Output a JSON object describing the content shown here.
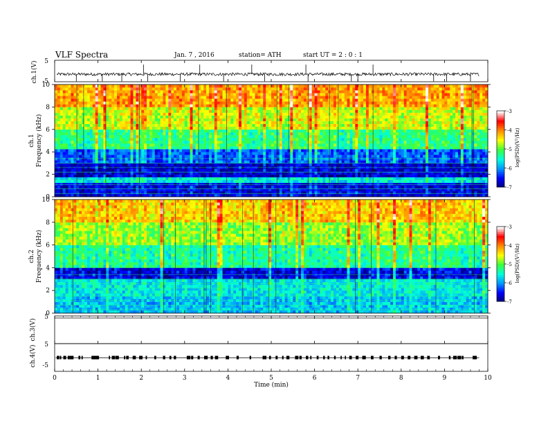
{
  "header": {
    "title": "VLF  Spectra",
    "date": "Jan.  7  , 2016",
    "station": "station= ATH",
    "start": "start  UT  =   2  : 0   : 1"
  },
  "chart_data": [
    {
      "type": "line",
      "panel": "ch1-waveform",
      "ylabel": "ch.1(V)",
      "ylim": [
        -5,
        5
      ],
      "yticks": [
        "5",
        "-5"
      ],
      "xlim": [
        0,
        10
      ],
      "baseline": -1.5,
      "spike_minutes": [
        0.5,
        1.1,
        1.55,
        2.05,
        2.15,
        2.9,
        3.35,
        3.9,
        4.55,
        4.85,
        5.8,
        5.85,
        6.85,
        7.0,
        7.35,
        8.75,
        9.05,
        9.6
      ]
    },
    {
      "type": "heatmap",
      "panel": "ch1-spectrogram",
      "ylabel": "ch.1\nFrequency (kHz)",
      "ylabel_line1": "ch.1",
      "ylabel_line2": "Frequency  (kHz)",
      "ylim": [
        0,
        10
      ],
      "yticks": [
        "0",
        "2",
        "4",
        "6",
        "8",
        "10"
      ],
      "xlim": [
        0,
        9.8
      ],
      "colorbar": {
        "label": "log(PSD)(V²/Hz)",
        "range": [
          -7,
          -3
        ],
        "ticks": [
          "-3",
          "-4",
          "-5",
          "-6",
          "-7"
        ]
      },
      "bands": [
        {
          "from_khz": 0.0,
          "to_khz": 1.2,
          "log_psd": -6.6
        },
        {
          "from_khz": 1.2,
          "to_khz": 1.8,
          "log_psd": -5.6
        },
        {
          "from_khz": 1.8,
          "to_khz": 3.0,
          "log_psd": -6.7
        },
        {
          "from_khz": 3.0,
          "to_khz": 4.2,
          "log_psd": -6.2
        },
        {
          "from_khz": 4.2,
          "to_khz": 6.0,
          "log_psd": -5.2
        },
        {
          "from_khz": 6.0,
          "to_khz": 8.0,
          "log_psd": -4.6
        },
        {
          "from_khz": 8.0,
          "to_khz": 10.0,
          "log_psd": -4.1
        }
      ]
    },
    {
      "type": "heatmap",
      "panel": "ch2-spectrogram",
      "ylabel_line1": "ch.2",
      "ylabel_line2": "Frequency  (kHz)",
      "ylim": [
        0,
        10
      ],
      "yticks": [
        "0",
        "2",
        "4",
        "6",
        "8",
        "10"
      ],
      "xlim": [
        0,
        9.8
      ],
      "colorbar": {
        "label": "log(PSD)(V²/Hz)",
        "range": [
          -7,
          -3
        ],
        "ticks": [
          "-3",
          "-4",
          "-5",
          "-6",
          "-7"
        ]
      },
      "bands": [
        {
          "from_khz": 0.0,
          "to_khz": 1.5,
          "log_psd": -5.8
        },
        {
          "from_khz": 1.5,
          "to_khz": 3.0,
          "log_psd": -5.6
        },
        {
          "from_khz": 3.0,
          "to_khz": 4.0,
          "log_psd": -6.6
        },
        {
          "from_khz": 4.0,
          "to_khz": 6.0,
          "log_psd": -5.3
        },
        {
          "from_khz": 6.0,
          "to_khz": 8.0,
          "log_psd": -4.8
        },
        {
          "from_khz": 8.0,
          "to_khz": 10.0,
          "log_psd": -4.3
        }
      ]
    },
    {
      "type": "line",
      "panel": "ch3-waveform",
      "ylabel": "ch.3(V)",
      "ylim": [
        -5,
        5
      ],
      "yticks": [
        "5",
        "-5"
      ],
      "xlim": [
        0,
        10
      ]
    },
    {
      "type": "line",
      "panel": "ch4-waveform",
      "ylabel": "ch.4(V)",
      "ylim": [
        -5,
        5
      ],
      "yticks": [
        "5",
        "-5"
      ],
      "xlim": [
        0,
        10
      ],
      "baseline": 0.1,
      "pulse_minutes": [
        0.05,
        0.12,
        0.2,
        0.3,
        0.35,
        0.55,
        0.62,
        0.85,
        0.9,
        0.97,
        1.25,
        1.32,
        1.4,
        1.6,
        1.65,
        1.8,
        1.95,
        2.1,
        2.3,
        2.5,
        2.65,
        2.75,
        3.05,
        3.15,
        3.3,
        3.45,
        3.6,
        3.7,
        3.95,
        4.2,
        4.5,
        4.8,
        4.85,
        4.95,
        5.1,
        5.25,
        5.35,
        5.55,
        5.65,
        5.8,
        5.9,
        6.05,
        6.2,
        6.3,
        6.45,
        6.6,
        6.7,
        6.8,
        6.95,
        7.1,
        7.3,
        7.5,
        7.7,
        7.85,
        8.0,
        8.15,
        8.3,
        8.45,
        8.6,
        8.85,
        9.1,
        9.2,
        9.3,
        9.4,
        9.65,
        9.72
      ]
    }
  ],
  "xaxis": {
    "label": "Time  (min)",
    "ticks": [
      "0",
      "1",
      "2",
      "3",
      "4",
      "5",
      "6",
      "7",
      "8",
      "9",
      "10"
    ]
  },
  "colors": {
    "background": "#ffffff",
    "axis": "#000000",
    "colormap": [
      "#000070",
      "#0000ff",
      "#00aaff",
      "#00ffcc",
      "#33ff33",
      "#ffff00",
      "#ff8800",
      "#ff0000",
      "#ffffff"
    ]
  }
}
